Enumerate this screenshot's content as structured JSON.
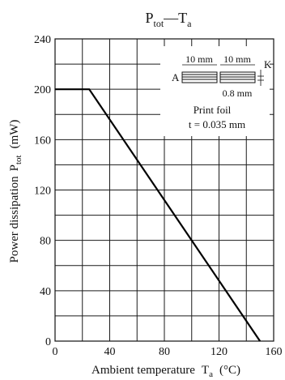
{
  "chart_data": {
    "type": "line",
    "title_main": "P",
    "title_main_sub": "tot",
    "title_dash": "—",
    "title_second": "T",
    "title_second_sub": "a",
    "xlabel_text": "Ambient temperature",
    "xlabel_symbol": "T",
    "xlabel_symbol_sub": "a",
    "xlabel_unit": "(°C)",
    "ylabel_text": "Power dissipation",
    "ylabel_symbol": "P",
    "ylabel_symbol_sub": "tot",
    "ylabel_unit": "(mW)",
    "xlim": [
      0,
      160
    ],
    "ylim": [
      0,
      240
    ],
    "x_ticks": [
      0,
      40,
      80,
      120,
      160
    ],
    "x_tick_labels": [
      "0",
      "40",
      "80",
      "120",
      "160"
    ],
    "y_ticks": [
      0,
      40,
      80,
      120,
      160,
      200,
      240
    ],
    "y_tick_labels": [
      "0",
      "40",
      "80",
      "120",
      "160",
      "200",
      "240"
    ],
    "x_grid_step": 20,
    "y_grid_step": 20,
    "grid": true,
    "series": [
      {
        "x": [
          0,
          25,
          150
        ],
        "y": [
          200,
          200,
          0
        ]
      }
    ],
    "inset": {
      "label_a": "A",
      "label_k": "K",
      "dim_left": "10 mm",
      "dim_right": "10 mm",
      "dim_gap": "0.8 mm",
      "caption_line1": "Print foil",
      "caption_line2": "t = 0.035 mm"
    }
  }
}
